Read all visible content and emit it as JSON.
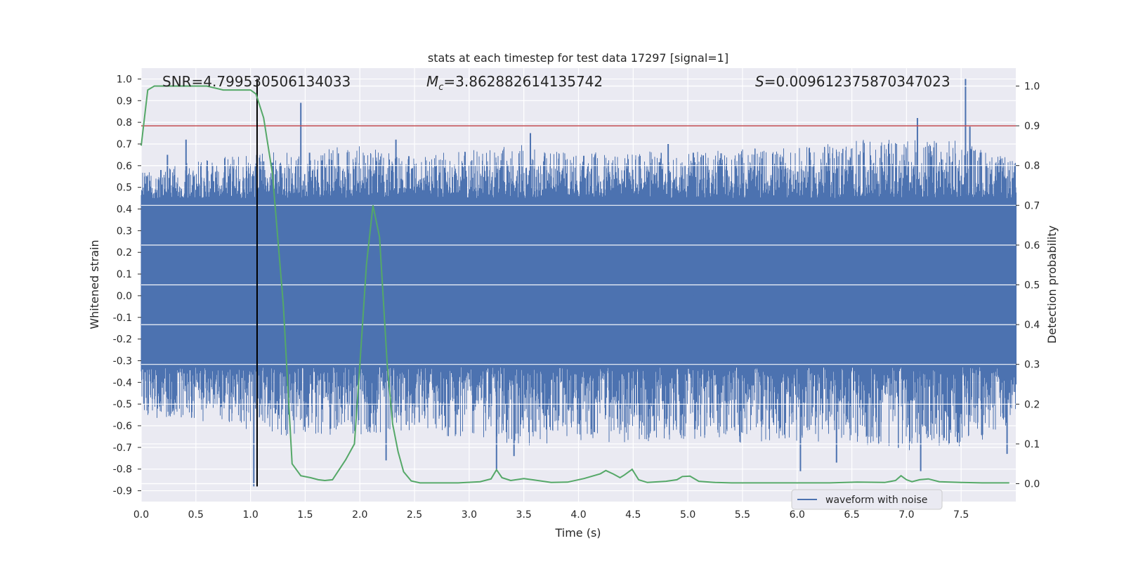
{
  "chart_data": {
    "type": "line",
    "title": "stats at each timestep for test data 17297 [signal=1]",
    "xlabel": "Time (s)",
    "ylabel": "Whitened strain",
    "ylabel_right": "Detection probability",
    "xlim": [
      0.0,
      8.0
    ],
    "ylim": [
      -0.95,
      1.05
    ],
    "ylim_right": [
      -0.045,
      1.045
    ],
    "x_ticks": [
      "0.0",
      "0.5",
      "1.0",
      "1.5",
      "2.0",
      "2.5",
      "3.0",
      "3.5",
      "4.0",
      "4.5",
      "5.0",
      "5.5",
      "6.0",
      "6.5",
      "7.0",
      "7.5"
    ],
    "y_ticks": [
      "1.0",
      "0.9",
      "0.8",
      "0.7",
      "0.6",
      "0.5",
      "0.4",
      "0.3",
      "0.2",
      "0.1",
      "0.0",
      "-0.1",
      "-0.2",
      "-0.3",
      "-0.4",
      "-0.5",
      "-0.6",
      "-0.7",
      "-0.8",
      "-0.9"
    ],
    "y_ticks_right": [
      "1.0",
      "0.9",
      "0.8",
      "0.7",
      "0.6",
      "0.5",
      "0.4",
      "0.3",
      "0.2",
      "0.1",
      "0.0"
    ],
    "grid": true,
    "legend_position": "bottom-right",
    "annotations": {
      "snr_text": "SNR=4.799530506134033",
      "mc_symbol": "M",
      "mc_subscript": "c",
      "mc_value": "=3.862882614135742",
      "s_symbol": "S",
      "s_value": "=0.009612375870347023"
    },
    "waveform": {
      "name": "waveform with noise",
      "color": "#4c72b0",
      "x_range": [
        0.0,
        8.0
      ],
      "core_range": [
        -0.33,
        0.45
      ],
      "spikes": [
        {
          "x": 0.05,
          "y": 0.55
        },
        {
          "x": 0.18,
          "y": 0.58
        },
        {
          "x": 0.24,
          "y": 0.65
        },
        {
          "x": 0.41,
          "y": 0.72
        },
        {
          "x": 1.03,
          "y": -0.88
        },
        {
          "x": 1.06,
          "y": -0.88
        },
        {
          "x": 1.12,
          "y": 0.62
        },
        {
          "x": 1.46,
          "y": 0.89
        },
        {
          "x": 1.54,
          "y": 0.66
        },
        {
          "x": 1.72,
          "y": 0.63
        },
        {
          "x": 2.24,
          "y": -0.76
        },
        {
          "x": 2.33,
          "y": 0.72
        },
        {
          "x": 3.25,
          "y": -0.8
        },
        {
          "x": 3.41,
          "y": -0.74
        },
        {
          "x": 3.56,
          "y": 0.75
        },
        {
          "x": 4.82,
          "y": 0.7
        },
        {
          "x": 5.05,
          "y": 0.66
        },
        {
          "x": 6.03,
          "y": -0.81
        },
        {
          "x": 6.36,
          "y": -0.77
        },
        {
          "x": 7.1,
          "y": 0.82
        },
        {
          "x": 7.13,
          "y": -0.81
        },
        {
          "x": 7.54,
          "y": 1.0
        },
        {
          "x": 7.58,
          "y": 0.78
        },
        {
          "x": 7.92,
          "y": -0.73
        }
      ],
      "envelope_points": [
        {
          "x": 0.0,
          "top": 0.57,
          "bottom": -0.56
        },
        {
          "x": 0.5,
          "top": 0.62,
          "bottom": -0.58
        },
        {
          "x": 1.0,
          "top": 0.66,
          "bottom": -0.62
        },
        {
          "x": 1.5,
          "top": 0.67,
          "bottom": -0.66
        },
        {
          "x": 2.0,
          "top": 0.7,
          "bottom": -0.65
        },
        {
          "x": 2.5,
          "top": 0.64,
          "bottom": -0.63
        },
        {
          "x": 3.0,
          "top": 0.68,
          "bottom": -0.66
        },
        {
          "x": 3.5,
          "top": 0.7,
          "bottom": -0.7
        },
        {
          "x": 4.0,
          "top": 0.66,
          "bottom": -0.67
        },
        {
          "x": 4.5,
          "top": 0.67,
          "bottom": -0.68
        },
        {
          "x": 5.0,
          "top": 0.66,
          "bottom": -0.66
        },
        {
          "x": 5.5,
          "top": 0.68,
          "bottom": -0.68
        },
        {
          "x": 6.0,
          "top": 0.68,
          "bottom": -0.68
        },
        {
          "x": 6.5,
          "top": 0.72,
          "bottom": -0.68
        },
        {
          "x": 7.0,
          "top": 0.72,
          "bottom": -0.72
        },
        {
          "x": 7.5,
          "top": 0.72,
          "bottom": -0.7
        },
        {
          "x": 8.0,
          "top": 0.62,
          "bottom": -0.62
        }
      ]
    },
    "probability": {
      "color": "#55a868",
      "x": [
        0.0,
        0.06,
        0.12,
        0.2,
        0.3,
        0.45,
        0.6,
        0.75,
        0.85,
        0.95,
        1.0,
        1.05,
        1.12,
        1.2,
        1.3,
        1.38,
        1.46,
        1.55,
        1.62,
        1.68,
        1.75,
        1.87,
        1.95,
        2.0,
        2.06,
        2.12,
        2.18,
        2.25,
        2.3,
        2.35,
        2.4,
        2.47,
        2.55,
        2.7,
        2.9,
        3.1,
        3.2,
        3.25,
        3.3,
        3.38,
        3.5,
        3.6,
        3.75,
        3.9,
        4.05,
        4.2,
        4.25,
        4.32,
        4.38,
        4.42,
        4.49,
        4.55,
        4.63,
        4.8,
        4.9,
        4.95,
        5.02,
        5.1,
        5.25,
        5.4,
        5.7,
        6.0,
        6.3,
        6.55,
        6.8,
        6.9,
        6.95,
        7.0,
        7.05,
        7.12,
        7.2,
        7.3,
        7.5,
        7.7,
        7.94
      ],
      "y": [
        0.85,
        0.99,
        1.0,
        1.0,
        1.0,
        1.0,
        1.0,
        0.99,
        0.99,
        0.99,
        0.99,
        0.98,
        0.92,
        0.78,
        0.45,
        0.05,
        0.02,
        0.015,
        0.01,
        0.008,
        0.01,
        0.06,
        0.1,
        0.3,
        0.55,
        0.7,
        0.62,
        0.3,
        0.15,
        0.08,
        0.03,
        0.007,
        0.002,
        0.002,
        0.002,
        0.005,
        0.012,
        0.035,
        0.015,
        0.008,
        0.013,
        0.009,
        0.003,
        0.004,
        0.013,
        0.025,
        0.033,
        0.024,
        0.015,
        0.022,
        0.036,
        0.01,
        0.003,
        0.006,
        0.01,
        0.018,
        0.019,
        0.006,
        0.003,
        0.002,
        0.002,
        0.002,
        0.002,
        0.004,
        0.003,
        0.008,
        0.02,
        0.01,
        0.005,
        0.01,
        0.012,
        0.005,
        0.003,
        0.002,
        0.002
      ]
    },
    "threshold": {
      "y_right": 0.9,
      "color": "#c44e52"
    },
    "vline": {
      "x": 1.06,
      "color": "#000000"
    },
    "background": "#eaeaf2",
    "grid_color": "#ffffff"
  }
}
